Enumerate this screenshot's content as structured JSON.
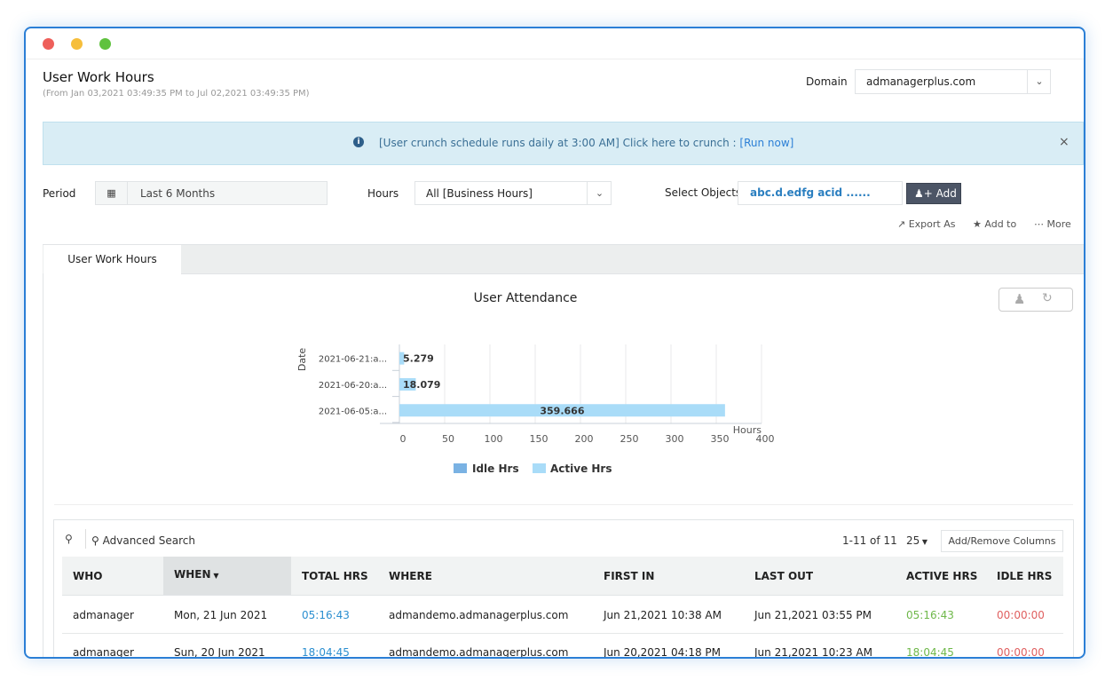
{
  "window": {
    "controls": [
      "close",
      "minimize",
      "maximize"
    ]
  },
  "header": {
    "title": "User Work Hours",
    "subtitle": "(From Jan 03,2021 03:49:35 PM to Jul 02,2021 03:49:35 PM)",
    "domain_label": "Domain",
    "domain_value": "admanagerplus.com"
  },
  "banner": {
    "text": "[User crunch schedule runs daily at 3:00 AM] Click here to crunch : ",
    "link": "[Run now]",
    "bg": "#d9edf5"
  },
  "filters": {
    "period_label": "Period",
    "period_value": "Last 6 Months",
    "hours_label": "Hours",
    "hours_value": "All [Business Hours]",
    "objects_label": "Select Objects",
    "objects_value": "abc.d.edfg acid ......",
    "add_label": "Add"
  },
  "actions": {
    "export": "Export As",
    "add_to": "Add to",
    "more": "More"
  },
  "tabs": [
    {
      "label": "User Work Hours",
      "active": true
    }
  ],
  "chart_data": {
    "type": "bar",
    "orientation": "horizontal",
    "title": "User Attendance",
    "xlabel": "Hours",
    "ylabel": "Date",
    "categories": [
      "2021-06-21:a...",
      "2021-06-20:a...",
      "2021-06-05:a..."
    ],
    "series": [
      {
        "name": "Idle Hrs",
        "values": [
          0,
          0,
          0
        ],
        "color": "#7ab2e3"
      },
      {
        "name": "Active Hrs",
        "values": [
          5.279,
          18.079,
          359.666
        ],
        "color": "#a9dcf8"
      }
    ],
    "data_labels": [
      "5.279",
      "18.079",
      "359.666"
    ],
    "xlim": [
      0,
      400
    ],
    "xticks": [
      "0",
      "50",
      "100",
      "150",
      "200",
      "250",
      "300",
      "350",
      "400"
    ],
    "grid": true,
    "legend": "bottom"
  },
  "table": {
    "advanced_search": "Advanced Search",
    "pagination": "1-11 of 11",
    "page_size": "25",
    "columns_button": "Add/Remove Columns",
    "columns": [
      "WHO",
      "WHEN",
      "TOTAL HRS",
      "WHERE",
      "FIRST IN",
      "LAST OUT",
      "ACTIVE HRS",
      "IDLE HRS"
    ],
    "rows": [
      [
        "admanager",
        "Mon, 21 Jun 2021",
        "05:16:43",
        "admandemo.admanagerplus.com",
        "Jun 21,2021 10:38 AM",
        "Jun 21,2021 03:55 PM",
        "05:16:43",
        "00:00:00"
      ],
      [
        "admanager",
        "Sun, 20 Jun 2021",
        "18:04:45",
        "admandemo.admanagerplus.com",
        "Jun 20,2021 04:18 PM",
        "Jun 21,2021 10:23 AM",
        "18:04:45",
        "00:00:00"
      ]
    ]
  }
}
